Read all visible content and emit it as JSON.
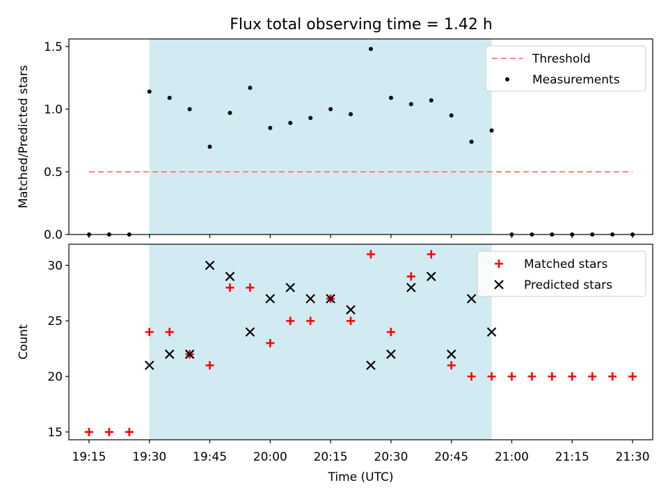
{
  "title": "Flux total observing time = 1.42 h",
  "colors": {
    "shade": "#add8e6",
    "threshold": "#ff7f7f",
    "measurement": "#000000",
    "matched": "#ff0000",
    "predicted": "#000000"
  },
  "chart_data": [
    {
      "type": "scatter",
      "name": "ratio",
      "ylabel": "Matched/Predicted stars",
      "xlabel": "",
      "xlim": [
        "19:10",
        "21:35"
      ],
      "ylim": [
        0,
        1.56
      ],
      "yticks": [
        0.0,
        0.5,
        1.0,
        1.5
      ],
      "ytick_labels": [
        "0.0",
        "0.5",
        "1.0",
        "1.5"
      ],
      "shaded_range": [
        "19:30",
        "20:55"
      ],
      "legend": {
        "position": "top-right",
        "entries": [
          "Threshold",
          "Measurements"
        ]
      },
      "threshold": {
        "name": "Threshold",
        "y": 0.5,
        "x": [
          "19:15",
          "21:30"
        ]
      },
      "series": [
        {
          "name": "Measurements",
          "x": [
            "19:15",
            "19:20",
            "19:25",
            "19:30",
            "19:35",
            "19:40",
            "19:45",
            "19:50",
            "19:55",
            "20:00",
            "20:05",
            "20:10",
            "20:15",
            "20:20",
            "20:25",
            "20:30",
            "20:35",
            "20:40",
            "20:45",
            "20:50",
            "20:55",
            "21:00",
            "21:05",
            "21:10",
            "21:15",
            "21:20",
            "21:25",
            "21:30"
          ],
          "y": [
            0.0,
            0.0,
            0.0,
            1.14,
            1.09,
            1.0,
            0.7,
            0.97,
            1.17,
            0.85,
            0.89,
            0.93,
            1.0,
            0.96,
            1.48,
            1.09,
            1.04,
            1.07,
            0.95,
            0.74,
            0.83,
            0.0,
            0.0,
            0.0,
            0.0,
            0.0,
            0.0,
            0.0
          ]
        }
      ]
    },
    {
      "type": "scatter",
      "name": "counts",
      "ylabel": "Count",
      "xlabel": "Time (UTC)",
      "xlim": [
        "19:10",
        "21:35"
      ],
      "ylim": [
        14.3,
        31.9
      ],
      "yticks": [
        15,
        20,
        25,
        30
      ],
      "ytick_labels": [
        "15",
        "20",
        "25",
        "30"
      ],
      "xticks": [
        "19:15",
        "19:30",
        "19:45",
        "20:00",
        "20:15",
        "20:30",
        "20:45",
        "21:00",
        "21:15",
        "21:30"
      ],
      "shaded_range": [
        "19:30",
        "20:55"
      ],
      "legend": {
        "position": "top-right",
        "entries": [
          "Matched stars",
          "Predicted stars"
        ]
      },
      "series": [
        {
          "name": "Matched stars",
          "marker": "plus",
          "x": [
            "19:15",
            "19:20",
            "19:25",
            "19:30",
            "19:35",
            "19:40",
            "19:45",
            "19:50",
            "19:55",
            "20:00",
            "20:05",
            "20:10",
            "20:15",
            "20:20",
            "20:25",
            "20:30",
            "20:35",
            "20:40",
            "20:45",
            "20:50",
            "20:55",
            "21:00",
            "21:05",
            "21:10",
            "21:15",
            "21:20",
            "21:25",
            "21:30"
          ],
          "y": [
            15,
            15,
            15,
            24,
            24,
            22,
            21,
            28,
            28,
            23,
            25,
            25,
            27,
            25,
            31,
            24,
            29,
            31,
            21,
            20,
            20,
            20,
            20,
            20,
            20,
            20,
            20,
            20
          ]
        },
        {
          "name": "Predicted stars",
          "marker": "x",
          "x": [
            "19:30",
            "19:35",
            "19:40",
            "19:45",
            "19:50",
            "19:55",
            "20:00",
            "20:05",
            "20:10",
            "20:15",
            "20:20",
            "20:25",
            "20:30",
            "20:35",
            "20:40",
            "20:45",
            "20:50",
            "20:55"
          ],
          "y": [
            21,
            22,
            22,
            30,
            29,
            24,
            27,
            28,
            27,
            27,
            26,
            21,
            22,
            28,
            29,
            22,
            27,
            24
          ]
        }
      ]
    }
  ]
}
